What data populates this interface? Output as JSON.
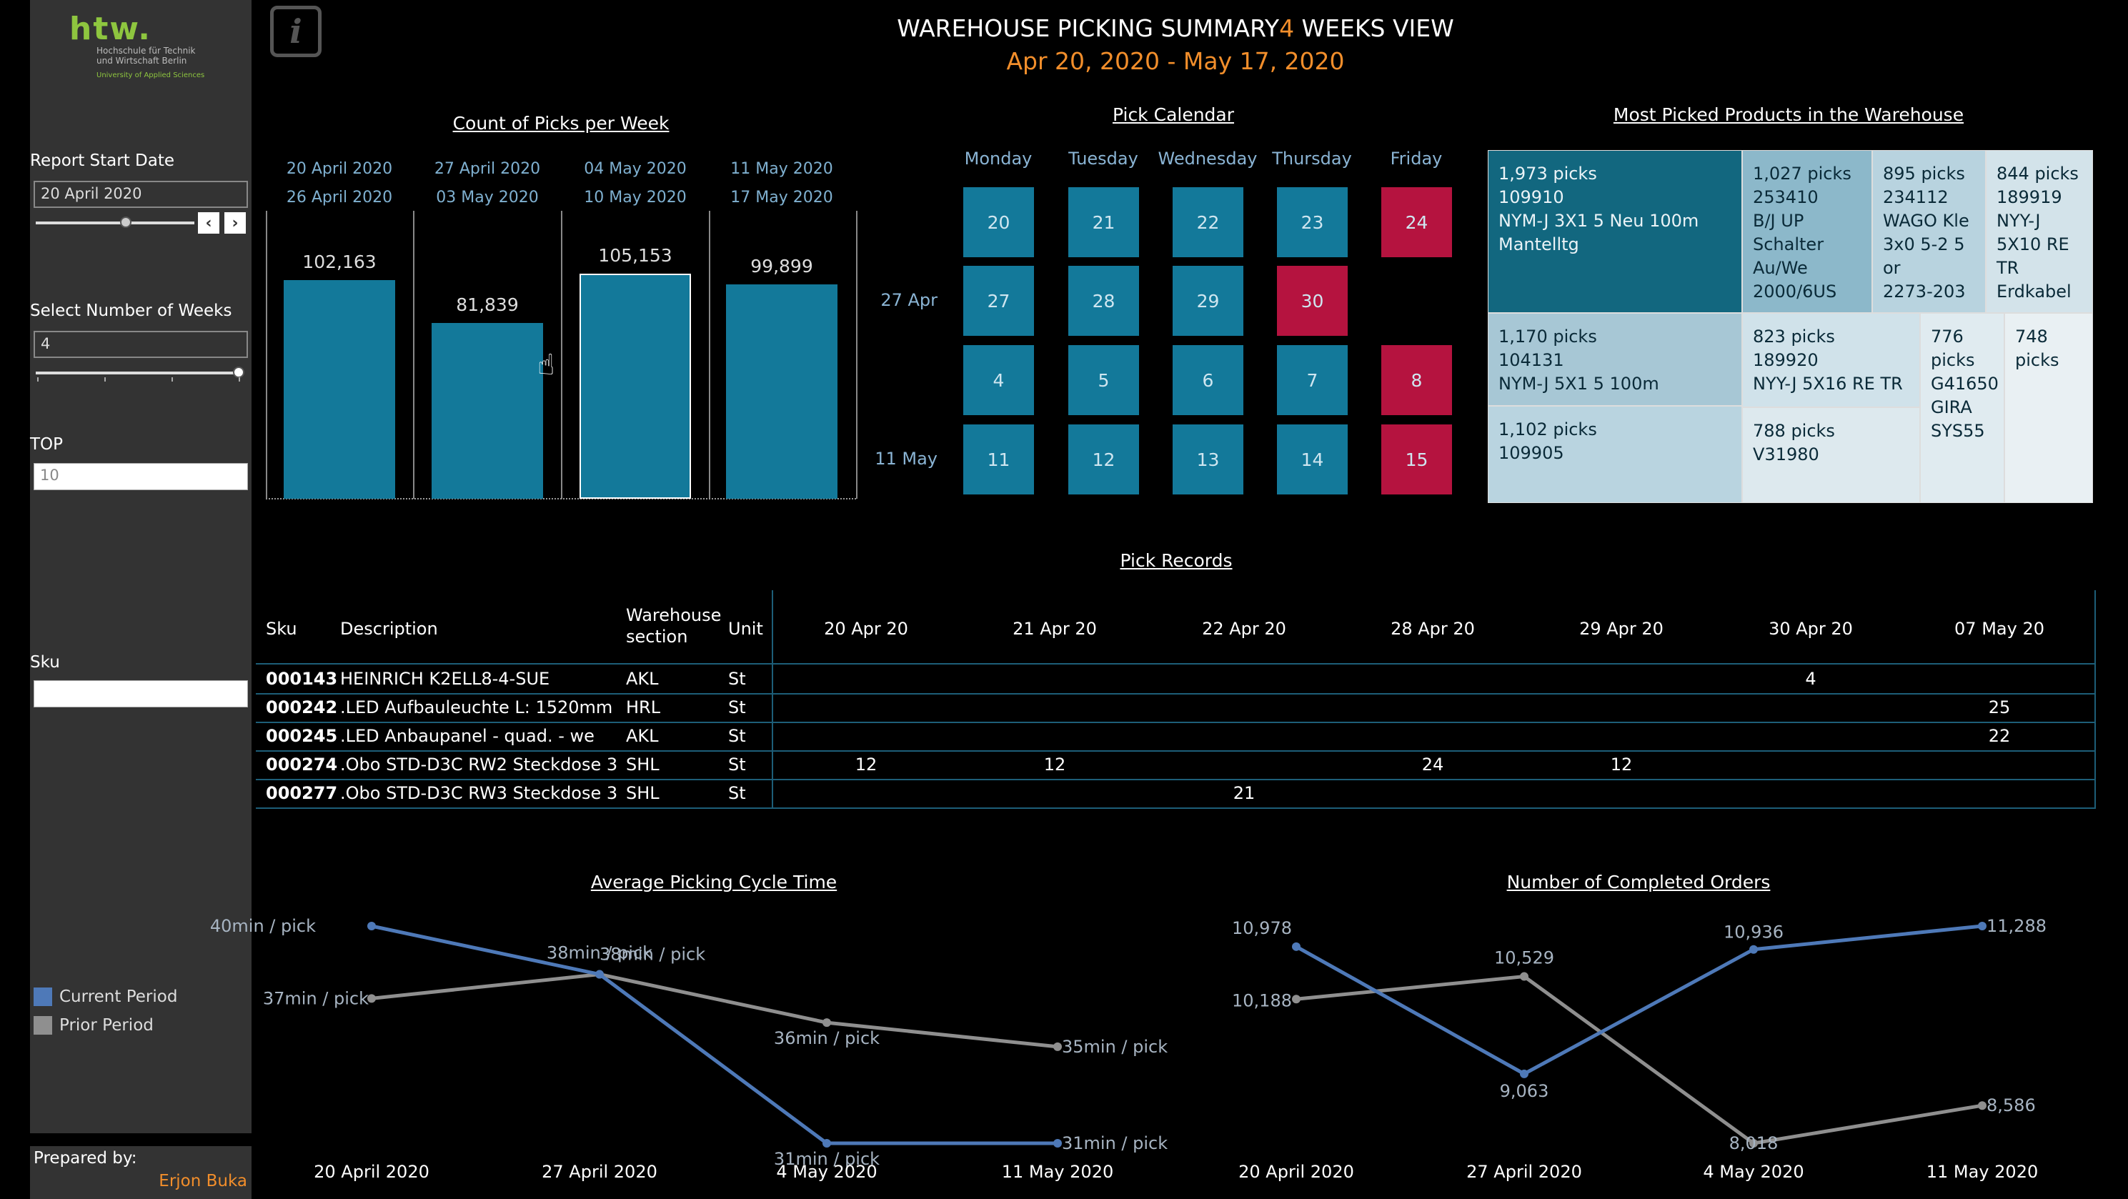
{
  "brand": {
    "logo_text": "htw.",
    "subtitle_line1": "Hochschule für Technik",
    "subtitle_line2": "und Wirtschaft Berlin",
    "subtitle_line3": "University of Applied Sciences"
  },
  "header": {
    "title_part1": "WAREHOUSE PICKING SUMMARY",
    "title_weeks": "4",
    "title_part2": " WEEKS VIEW",
    "date_range": "Apr 20, 2020 - May 17, 2020"
  },
  "filters": {
    "start_date_label": "Report Start Date",
    "start_date_value": "20 April 2020",
    "weeks_label": "Select Number of Weeks",
    "weeks_value": "4",
    "top_label": "TOP",
    "top_value": "10",
    "sku_label": "Sku",
    "sku_value": ""
  },
  "legend": {
    "current": "Current Period",
    "prior": "Prior Period"
  },
  "footer": {
    "prepared_label": "Prepared by:",
    "prepared_name": "Erjon Buka"
  },
  "colors": {
    "bar": "#13799a",
    "current": "#4e79b8",
    "prior": "#8f8f8f",
    "accent": "#f28e2b",
    "friday": "#b5133f"
  },
  "picks_per_week": {
    "title": "Count of Picks per Week",
    "weeks": [
      {
        "start": "20 April 2020",
        "end": "26 April 2020",
        "value": "102,163",
        "v": 102163
      },
      {
        "start": "27 April 2020",
        "end": "03 May 2020",
        "value": "81,839",
        "v": 81839
      },
      {
        "start": "04 May 2020",
        "end": "10 May 2020",
        "value": "105,153",
        "v": 105153
      },
      {
        "start": "11 May 2020",
        "end": "17 May 2020",
        "value": "99,899",
        "v": 99899
      }
    ]
  },
  "calendar": {
    "title": "Pick Calendar",
    "days": [
      "Monday",
      "Tuesday",
      "Wednesday",
      "Thursday",
      "Friday"
    ],
    "row_labels": [
      "",
      "27 Apr",
      "",
      "11 May"
    ],
    "weeks": [
      [
        "20",
        "21",
        "22",
        "23",
        "24"
      ],
      [
        "27",
        "28",
        "29",
        "30",
        ""
      ],
      [
        "4",
        "5",
        "6",
        "7",
        "8"
      ],
      [
        "11",
        "12",
        "13",
        "14",
        "15"
      ]
    ]
  },
  "treemap": {
    "title": "Most Picked Products in the Warehouse",
    "items": [
      {
        "text": "1,973 picks\n109910\nNYM-J 3X1 5 Neu 100m\nMantelltg"
      },
      {
        "text": "1,027 picks\n253410\nB/J UP\nSchalter\nAu/We\n2000/6US"
      },
      {
        "text": "895 picks\n234112\nWAGO Kle\n3x0 5-2 5\nor\n2273-203"
      },
      {
        "text": "844 picks\n189919\nNYY-J\n5X10 RE\nTR\nErdkabel"
      },
      {
        "text": "1,170 picks\n104131\nNYM-J 5X1 5 100m"
      },
      {
        "text": "823 picks\n189920\nNYY-J 5X16 RE TR"
      },
      {
        "text": "776\npicks\nG41650\nGIRA\nSYS55"
      },
      {
        "text": "748\npicks"
      },
      {
        "text": "1,102 picks\n109905"
      },
      {
        "text": "788 picks\nV31980"
      }
    ]
  },
  "records": {
    "title": "Pick Records",
    "headers": {
      "sku": "Sku",
      "desc": "Description",
      "section": "Warehouse section",
      "unit": "Unit"
    },
    "dates": [
      "20 Apr 20",
      "21 Apr 20",
      "22 Apr 20",
      "28 Apr 20",
      "29 Apr 20",
      "30 Apr 20",
      "07 May 20"
    ],
    "rows": [
      {
        "sku": "000143",
        "desc": "HEINRICH K2ELL8-4-SUE",
        "section": "AKL",
        "unit": "St",
        "vals": [
          "",
          "",
          "",
          "",
          "",
          "4",
          ""
        ]
      },
      {
        "sku": "000242",
        "desc": ".LED Aufbauleuchte L: 1520mm",
        "section": "HRL",
        "unit": "St",
        "vals": [
          "",
          "",
          "",
          "",
          "",
          "",
          "25"
        ]
      },
      {
        "sku": "000245",
        "desc": ".LED Anbaupanel - quad. - we",
        "section": "AKL",
        "unit": "St",
        "vals": [
          "",
          "",
          "",
          "",
          "",
          "",
          "22"
        ]
      },
      {
        "sku": "000274",
        "desc": ".Obo STD-D3C RW2 Steckdose 3",
        "section": "SHL",
        "unit": "St",
        "vals": [
          "12",
          "12",
          "",
          "24",
          "12",
          "",
          ""
        ]
      },
      {
        "sku": "000277",
        "desc": ".Obo STD-D3C RW3 Steckdose 3",
        "section": "SHL",
        "unit": "St",
        "vals": [
          "",
          "",
          "21",
          "",
          "",
          "",
          ""
        ]
      }
    ]
  },
  "chart_data": [
    {
      "type": "line",
      "title": "Average Picking Cycle Time",
      "categories": [
        "20 April 2020",
        "27 April 2020",
        "4 May 2020",
        "11 May 2020"
      ],
      "series": [
        {
          "name": "Current Period",
          "values": [
            40,
            38,
            31,
            31
          ],
          "labels": [
            "40min / pick",
            "38min / pick",
            "31min / pick",
            "31min / pick"
          ]
        },
        {
          "name": "Prior Period",
          "values": [
            37,
            38,
            36,
            35
          ],
          "labels": [
            "37min / pick",
            "38min / pick",
            "36min / pick",
            "35min / pick"
          ]
        }
      ],
      "ylim": [
        31,
        40
      ]
    },
    {
      "type": "line",
      "title": "Number of Completed Orders",
      "categories": [
        "20 April 2020",
        "27 April 2020",
        "4 May 2020",
        "11 May 2020"
      ],
      "series": [
        {
          "name": "Current Period",
          "values": [
            10978,
            9063,
            10936,
            11288
          ],
          "labels": [
            "10,978",
            "9,063",
            "10,936",
            "11,288"
          ]
        },
        {
          "name": "Prior Period",
          "values": [
            10188,
            10529,
            8018,
            8586
          ],
          "labels": [
            "10,188",
            "10,529",
            "8,018",
            "8,586"
          ]
        }
      ],
      "ylim": [
        8018,
        11288
      ]
    }
  ]
}
